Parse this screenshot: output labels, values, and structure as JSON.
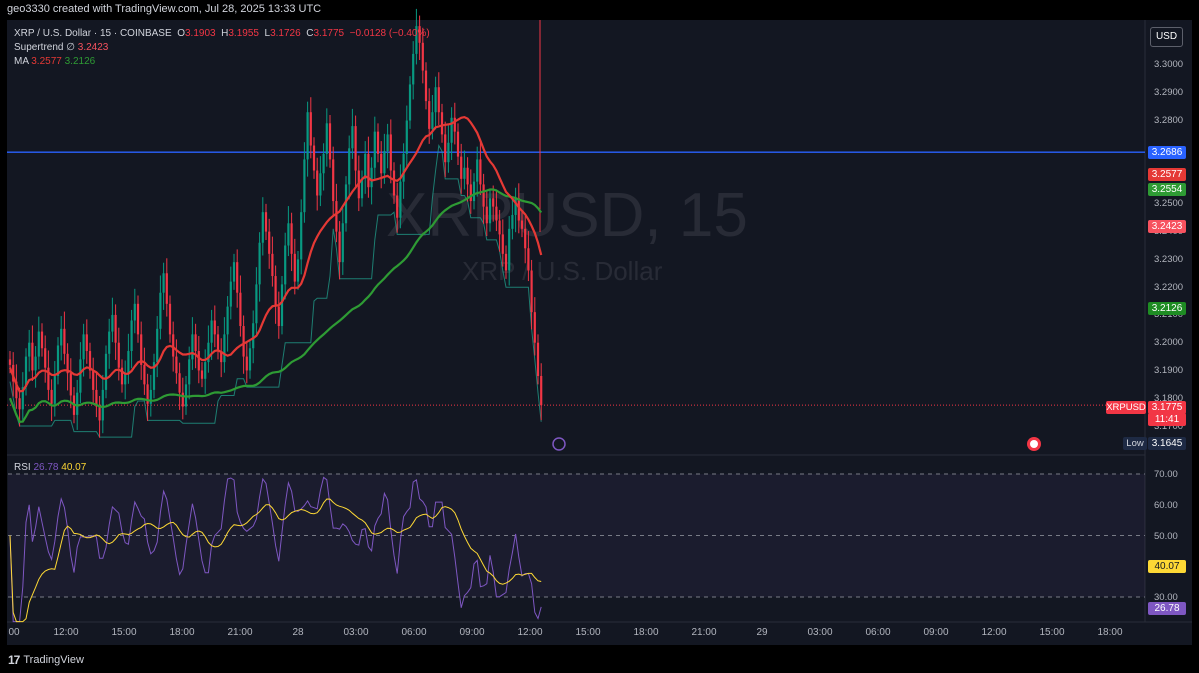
{
  "header": {
    "text": "geo3330 created with TradingView.com, Jul 28, 2025 13:33 UTC"
  },
  "legend": {
    "symbol": "XRP / U.S. Dollar · 15 · COINBASE",
    "o_label": "O",
    "o": "3.1903",
    "h_label": "H",
    "h": "3.1955",
    "l_label": "L",
    "l": "3.1726",
    "c_label": "C",
    "c": "3.1775",
    "change": "−0.0128 (−0.40%)",
    "supertrend_label": "Supertrend",
    "supertrend_icon": "∅",
    "supertrend_value": "3.2423",
    "ma_label": "MA",
    "ma_fast": "3.2577",
    "ma_slow": "3.2126"
  },
  "rsi_legend": {
    "label": "RSI",
    "rsi": "26.78",
    "ma": "40.07"
  },
  "currency_button": "USD",
  "watermark": {
    "main": "XRPUSD, 15",
    "sub": "XRP / U.S. Dollar"
  },
  "price_axis": {
    "ticks": [
      "3.3000",
      "3.2900",
      "3.2800",
      "3.2500",
      "3.2300",
      "3.2200",
      "3.2000",
      "3.1900",
      "3.1800",
      "3.1700"
    ],
    "ticks_partial": [
      "3.2400",
      "3.2100"
    ]
  },
  "price_tags": {
    "hline": "3.2686",
    "ma_fast": "3.2577",
    "ma_slow_green": "3.2554",
    "supertrend": "3.2423",
    "ma_slow": "3.2126",
    "symbol": "XRPUSD",
    "last": "3.1775",
    "countdown": "11:41",
    "low_label": "Low",
    "low": "3.1645"
  },
  "rsi_axis": {
    "ticks": [
      "70.00",
      "60.00",
      "50.00",
      "30.00"
    ],
    "ma_tag": "40.07",
    "rsi_tag": "26.78"
  },
  "time_axis": [
    "00",
    "12:00",
    "15:00",
    "18:00",
    "21:00",
    "28",
    "03:00",
    "06:00",
    "09:00",
    "12:00",
    "15:00",
    "18:00",
    "21:00",
    "29",
    "03:00",
    "06:00",
    "09:00",
    "12:00",
    "15:00",
    "18:00"
  ],
  "footer": {
    "brand": "TradingView"
  },
  "colors": {
    "up": "#089981",
    "down": "#f23645",
    "bg": "#131722",
    "ma_fast": "#e53935",
    "ma_slow": "#2e9b34",
    "hline": "#2962ff",
    "rsi": "#7e57c2",
    "rsi_ma": "#fdd835",
    "supertrend": "#ff6d00"
  },
  "chart_data": {
    "type": "candlestick",
    "symbol": "XRP / U.S. Dollar",
    "interval": "15",
    "exchange": "COINBASE",
    "price_range": [
      3.164,
      3.32
    ],
    "horizontal_line": 3.2686,
    "candles_close": [
      3.192,
      3.186,
      3.18,
      3.176,
      3.184,
      3.195,
      3.2,
      3.19,
      3.195,
      3.204,
      3.198,
      3.191,
      3.183,
      3.178,
      3.188,
      3.199,
      3.205,
      3.196,
      3.189,
      3.181,
      3.174,
      3.182,
      3.194,
      3.203,
      3.197,
      3.19,
      3.183,
      3.177,
      3.172,
      3.183,
      3.196,
      3.204,
      3.21,
      3.2,
      3.191,
      3.185,
      3.189,
      3.197,
      3.208,
      3.214,
      3.203,
      3.192,
      3.185,
      3.178,
      3.183,
      3.193,
      3.205,
      3.218,
      3.225,
      3.214,
      3.203,
      3.195,
      3.189,
      3.182,
      3.177,
      3.185,
      3.194,
      3.203,
      3.197,
      3.19,
      3.187,
      3.193,
      3.2,
      3.208,
      3.203,
      3.197,
      3.193,
      3.203,
      3.213,
      3.222,
      3.229,
      3.218,
      3.206,
      3.195,
      3.19,
      3.198,
      3.207,
      3.221,
      3.236,
      3.247,
      3.24,
      3.232,
      3.224,
      3.213,
      3.206,
      3.221,
      3.235,
      3.243,
      3.232,
      3.222,
      3.23,
      3.247,
      3.266,
      3.283,
      3.271,
      3.262,
      3.253,
      3.261,
      3.268,
      3.279,
      3.266,
      3.251,
      3.24,
      3.229,
      3.243,
      3.257,
      3.27,
      3.278,
      3.262,
      3.252,
      3.259,
      3.268,
      3.256,
      3.263,
      3.276,
      3.268,
      3.261,
      3.269,
      3.275,
      3.262,
      3.253,
      3.245,
      3.258,
      3.268,
      3.28,
      3.293,
      3.304,
      3.314,
      3.308,
      3.298,
      3.287,
      3.277,
      3.283,
      3.292,
      3.283,
      3.275,
      3.265,
      3.272,
      3.281,
      3.276,
      3.267,
      3.259,
      3.263,
      3.257,
      3.251,
      3.258,
      3.266,
      3.257,
      3.249,
      3.243,
      3.252,
      3.249,
      3.244,
      3.239,
      3.232,
      3.226,
      3.241,
      3.246,
      3.252,
      3.244,
      3.241,
      3.234,
      3.226,
      3.211,
      3.2,
      3.188,
      3.1775
    ],
    "series": [
      {
        "name": "Supertrend",
        "values": [
          3.2423
        ]
      },
      {
        "name": "MA",
        "values": [
          3.2577,
          3.2126
        ]
      }
    ],
    "rsi": {
      "range": [
        25,
        75
      ],
      "levels": [
        70,
        50,
        30
      ],
      "last": 26.78,
      "ma_last": 40.07
    },
    "x_ticks": [
      "00",
      "12:00",
      "15:00",
      "18:00",
      "21:00",
      "28",
      "03:00",
      "06:00",
      "09:00",
      "12:00",
      "15:00",
      "18:00",
      "21:00",
      "29",
      "03:00",
      "06:00",
      "09:00",
      "12:00",
      "15:00",
      "18:00"
    ]
  }
}
